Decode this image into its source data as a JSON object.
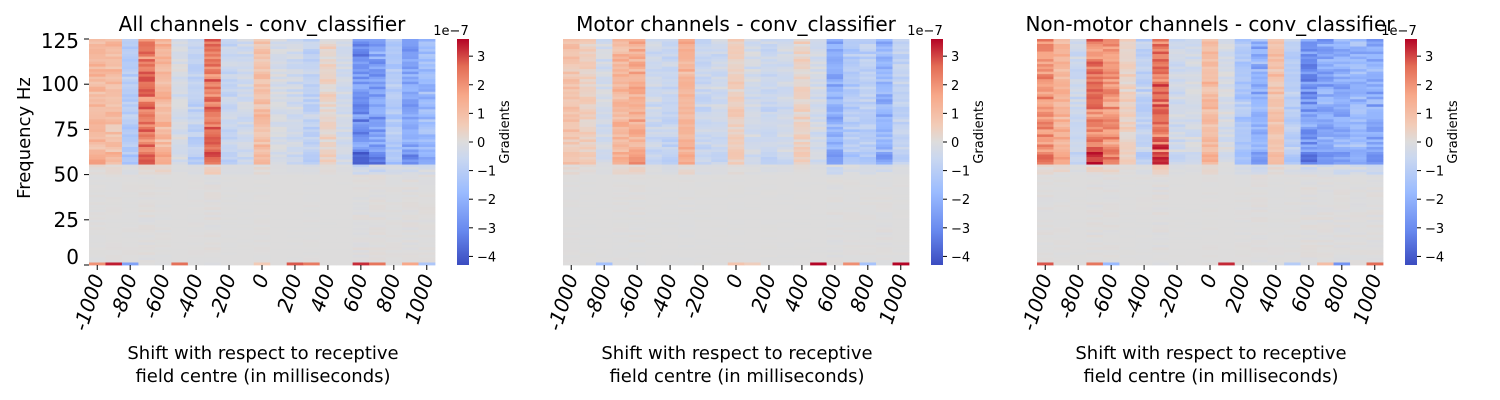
{
  "chart_data": [
    {
      "type": "heatmap",
      "title": "All channels - conv_classifier",
      "xlabel": "Shift with respect to receptive\nfield centre (in milliseconds)",
      "ylabel": "Frequency Hz",
      "x_ticks": [
        "-1000",
        "-800",
        "-600",
        "-400",
        "-200",
        "0",
        "200",
        "400",
        "600",
        "800",
        "1000"
      ],
      "y_ticks": [
        "0",
        "25",
        "50",
        "75",
        "100",
        "125"
      ],
      "x_range": [
        -1000,
        1000
      ],
      "y_range": [
        0,
        125
      ],
      "colorbar": {
        "label": "Gradients",
        "scale_label": "1e−7",
        "min": -4.3,
        "max": 3.6,
        "ticks": [
          "−4",
          "−3",
          "−2",
          "−1",
          "0",
          "1",
          "2",
          "3"
        ],
        "colormap": "coolwarm"
      },
      "columns": [
        {
          "shift": -1000,
          "grad": 1.4
        },
        {
          "shift": -900,
          "grad": 1.2
        },
        {
          "shift": -800,
          "grad": -1.2
        },
        {
          "shift": -700,
          "grad": 3.0
        },
        {
          "shift": -600,
          "grad": 1.5
        },
        {
          "shift": -500,
          "grad": -0.3
        },
        {
          "shift": -400,
          "grad": -1.0
        },
        {
          "shift": -300,
          "grad": 3.0
        },
        {
          "shift": -200,
          "grad": -0.8
        },
        {
          "shift": -100,
          "grad": -0.5
        },
        {
          "shift": 0,
          "grad": 1.2
        },
        {
          "shift": 100,
          "grad": -0.3
        },
        {
          "shift": 200,
          "grad": -0.5
        },
        {
          "shift": 300,
          "grad": -1.0
        },
        {
          "shift": 400,
          "grad": 0.4
        },
        {
          "shift": 500,
          "grad": -0.4
        },
        {
          "shift": 600,
          "grad": -3.5
        },
        {
          "shift": 700,
          "grad": -3.2
        },
        {
          "shift": 800,
          "grad": -1.5
        },
        {
          "shift": 900,
          "grad": -2.8
        },
        {
          "shift": 1000,
          "grad": -2.2
        }
      ]
    },
    {
      "type": "heatmap",
      "title": "Motor channels - conv_classifier",
      "xlabel": "Shift with respect to receptive\nfield centre (in milliseconds)",
      "ylabel": "",
      "x_ticks": [
        "-1000",
        "-800",
        "-600",
        "-400",
        "-200",
        "0",
        "200",
        "400",
        "600",
        "800",
        "1000"
      ],
      "y_ticks": [],
      "x_range": [
        -1000,
        1000
      ],
      "y_range": [
        0,
        125
      ],
      "colorbar": {
        "label": "Gradients",
        "scale_label": "1e−7",
        "min": -4.3,
        "max": 3.6,
        "ticks": [
          "−4",
          "−3",
          "−2",
          "−1",
          "0",
          "1",
          "2",
          "3"
        ],
        "colormap": "coolwarm"
      },
      "columns": [
        {
          "shift": -1000,
          "grad": 1.0
        },
        {
          "shift": -900,
          "grad": 0.6
        },
        {
          "shift": -800,
          "grad": -0.4
        },
        {
          "shift": -700,
          "grad": 1.4
        },
        {
          "shift": -600,
          "grad": 1.8
        },
        {
          "shift": -500,
          "grad": -0.6
        },
        {
          "shift": -400,
          "grad": -0.8
        },
        {
          "shift": -300,
          "grad": 1.6
        },
        {
          "shift": -200,
          "grad": -0.7
        },
        {
          "shift": -100,
          "grad": -0.6
        },
        {
          "shift": 0,
          "grad": 0.6
        },
        {
          "shift": 100,
          "grad": -0.4
        },
        {
          "shift": 200,
          "grad": -0.7
        },
        {
          "shift": 300,
          "grad": -0.5
        },
        {
          "shift": 400,
          "grad": 0.5
        },
        {
          "shift": 500,
          "grad": -0.4
        },
        {
          "shift": 600,
          "grad": -2.6
        },
        {
          "shift": 700,
          "grad": -1.4
        },
        {
          "shift": 800,
          "grad": -1.2
        },
        {
          "shift": 900,
          "grad": -2.4
        },
        {
          "shift": 1000,
          "grad": -0.9
        }
      ]
    },
    {
      "type": "heatmap",
      "title": "Non-motor channels - conv_classifier",
      "xlabel": "Shift with respect to receptive\nfield centre (in milliseconds)",
      "ylabel": "",
      "x_ticks": [
        "-1000",
        "-800",
        "-600",
        "-400",
        "-200",
        "0",
        "200",
        "400",
        "600",
        "800",
        "1000"
      ],
      "y_ticks": [],
      "x_range": [
        -1000,
        1000
      ],
      "y_range": [
        0,
        125
      ],
      "colorbar": {
        "label": "Gradients",
        "scale_label": "1e−7",
        "min": -4.3,
        "max": 3.6,
        "ticks": [
          "−4",
          "−3",
          "−2",
          "−1",
          "0",
          "1",
          "2",
          "3"
        ],
        "colormap": "coolwarm"
      },
      "columns": [
        {
          "shift": -1000,
          "grad": 2.5
        },
        {
          "shift": -900,
          "grad": 1.6
        },
        {
          "shift": -800,
          "grad": -0.6
        },
        {
          "shift": -700,
          "grad": 3.0
        },
        {
          "shift": -600,
          "grad": 2.4
        },
        {
          "shift": -500,
          "grad": 0.5
        },
        {
          "shift": -400,
          "grad": -1.0
        },
        {
          "shift": -300,
          "grad": 3.3
        },
        {
          "shift": -200,
          "grad": -0.5
        },
        {
          "shift": -100,
          "grad": -0.4
        },
        {
          "shift": 0,
          "grad": 1.3
        },
        {
          "shift": 100,
          "grad": -0.3
        },
        {
          "shift": 200,
          "grad": -1.6
        },
        {
          "shift": 300,
          "grad": -2.6
        },
        {
          "shift": 400,
          "grad": 1.1
        },
        {
          "shift": 500,
          "grad": -1.2
        },
        {
          "shift": 600,
          "grad": -3.5
        },
        {
          "shift": 700,
          "grad": -2.9
        },
        {
          "shift": 800,
          "grad": -2.6
        },
        {
          "shift": 900,
          "grad": -2.3
        },
        {
          "shift": 1000,
          "grad": -2.8
        }
      ]
    }
  ]
}
